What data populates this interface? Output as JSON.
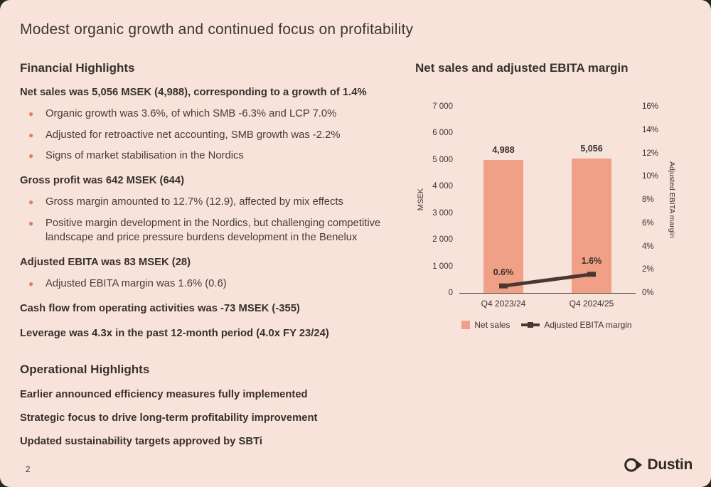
{
  "slide": {
    "title": "Modest organic growth and continued focus on profitability",
    "page_number": "2",
    "logo_text": "Dustin"
  },
  "financial": {
    "heading": "Financial Highlights",
    "items": [
      {
        "style": "bold",
        "text": "Net sales was 5,056 MSEK (4,988), corresponding to a growth of 1.4%"
      },
      {
        "style": "bullet",
        "text": "Organic growth was 3.6%, of which SMB -6.3% and LCP 7.0%"
      },
      {
        "style": "bullet",
        "text": "Adjusted for retroactive net accounting, SMB growth was -2.2%"
      },
      {
        "style": "bullet",
        "text": "Signs of market stabilisation in the Nordics"
      },
      {
        "style": "bold",
        "text": "Gross profit was 642 MSEK (644)"
      },
      {
        "style": "bullet",
        "text": "Gross margin amounted to 12.7% (12.9), affected by mix effects"
      },
      {
        "style": "bullet",
        "text": "Positive margin development in the Nordics, but challenging competitive landscape and price pressure burdens development in the Benelux"
      },
      {
        "style": "bold",
        "text": "Adjusted EBITA was 83 MSEK (28)"
      },
      {
        "style": "bullet",
        "text": "Adjusted EBITA margin was 1.6% (0.6)"
      },
      {
        "style": "bold",
        "text": "Cash flow from operating activities was -73 MSEK (-355)"
      },
      {
        "style": "bold",
        "text": "Leverage was 4.3x in the past 12-month period (4.0x FY 23/24)"
      }
    ]
  },
  "operational": {
    "heading": "Operational Highlights",
    "items": [
      {
        "text": "Earlier announced efficiency measures fully implemented"
      },
      {
        "text": "Strategic focus to drive long-term profitability improvement"
      },
      {
        "text": "Updated sustainability targets approved by SBTi"
      }
    ]
  },
  "chart_data": {
    "type": "bar+line",
    "title": "Net sales and adjusted EBITA margin",
    "categories": [
      "Q4 2023/24",
      "Q4 2024/25"
    ],
    "series": [
      {
        "name": "Net sales",
        "type": "bar",
        "axis": "left",
        "values": [
          4988,
          5056
        ],
        "labels": [
          "4,988",
          "5,056"
        ],
        "color": "#f0a087"
      },
      {
        "name": "Adjusted EBITA margin",
        "type": "line",
        "axis": "right",
        "values": [
          0.6,
          1.6
        ],
        "labels": [
          "0.6%",
          "1.6%"
        ],
        "color": "#493730"
      }
    ],
    "left_axis": {
      "label": "MSEK",
      "min": 0,
      "max": 7000,
      "ticks": [
        "7 000",
        "6 000",
        "5 000",
        "4 000",
        "3 000",
        "2 000",
        "1 000",
        "0"
      ]
    },
    "right_axis": {
      "label": "Adjusted EBITA margin",
      "min": 0,
      "max": 16,
      "ticks": [
        "16%",
        "14%",
        "12%",
        "10%",
        "8%",
        "6%",
        "4%",
        "2%",
        "0%"
      ]
    },
    "grid": false,
    "legend_position": "bottom"
  }
}
